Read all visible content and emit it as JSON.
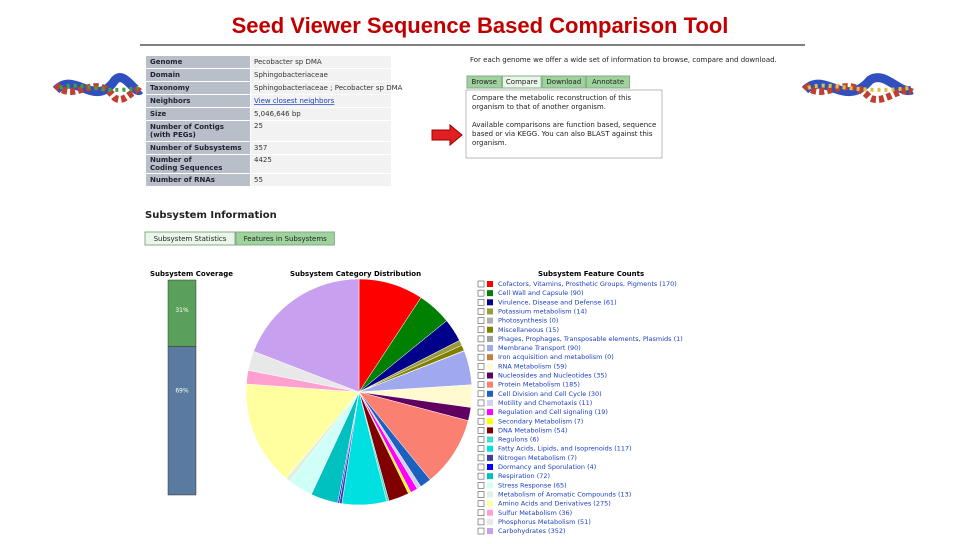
{
  "title": "Seed Viewer Sequence Based Comparison Tool",
  "overview": [
    [
      "Genome",
      "Pecobacter sp DMA"
    ],
    [
      "Domain",
      "Sphingobacteriaceae"
    ],
    [
      "Taxonomy",
      "Sphingobacteriaceae ; Pecobacter sp DMA"
    ],
    [
      "Neighbors",
      "View closest neighbors"
    ],
    [
      "Size",
      "5,046,646 bp"
    ],
    [
      "Number of Contigs (with PEGs)",
      "25"
    ],
    [
      "Number of Subsystems",
      "357"
    ],
    [
      "Number of Coding Sequences",
      "4425"
    ],
    [
      "Number of RNAs",
      "55"
    ]
  ],
  "info": {
    "intro": "For each genome we offer a wide set of information to browse, compare and download.",
    "tabs": [
      "Browse",
      "Compare",
      "Download",
      "Annotate"
    ],
    "text1": "Compare the metabolic reconstruction of this organism to that of another organism.",
    "text2": "Available comparisons are function based, sequence based or via KEGG. You can also BLAST against this organism."
  },
  "subsystem": {
    "heading": "Subsystem Information",
    "tabs": [
      "Subsystem Statistics",
      "Features in Subsystems"
    ],
    "coverage_title": "Subsystem Coverage",
    "distribution_title": "Subsystem Category Distribution",
    "counts_title": "Subsystem Feature Counts",
    "coverage": [
      {
        "value": 31,
        "label": "31%",
        "color": "#5aa05a"
      },
      {
        "value": 69,
        "label": "69%",
        "color": "#5a7aa0"
      }
    ],
    "features": [
      {
        "label": "Cofactors, Vitamins, Prosthetic Groups, Pigments (170)",
        "value": 170,
        "color": "#ff0000"
      },
      {
        "label": "Cell Wall and Capsule (90)",
        "value": 90,
        "color": "#008000"
      },
      {
        "label": "Virulence, Disease and Defense (61)",
        "value": 61,
        "color": "#00008b"
      },
      {
        "label": "Potassium metabolism (14)",
        "value": 14,
        "color": "#9a9a3a"
      },
      {
        "label": "Photosynthesis (0)",
        "value": 0,
        "color": "#b0b0b0"
      },
      {
        "label": "Miscellaneous (15)",
        "value": 15,
        "color": "#808000"
      },
      {
        "label": "Phages, Prophages, Transposable elements, Plasmids (1)",
        "value": 1,
        "color": "#a0a0a0"
      },
      {
        "label": "Membrane Transport (90)",
        "value": 90,
        "color": "#a0a8f0"
      },
      {
        "label": "Iron acquisition and metabolism (0)",
        "value": 0,
        "color": "#c08040"
      },
      {
        "label": "RNA Metabolism (59)",
        "value": 59,
        "color": "#fffad0"
      },
      {
        "label": "Nucleosides and Nucleotides (35)",
        "value": 35,
        "color": "#600060"
      },
      {
        "label": "Protein Metabolism (185)",
        "value": 185,
        "color": "#fa8072"
      },
      {
        "label": "Cell Division and Cell Cycle (30)",
        "value": 30,
        "color": "#1e60c0"
      },
      {
        "label": "Motility and Chemotaxis (11)",
        "value": 11,
        "color": "#d0d0f0"
      },
      {
        "label": "Regulation and Cell signaling (19)",
        "value": 19,
        "color": "#ff00ff"
      },
      {
        "label": "Secondary Metabolism (7)",
        "value": 7,
        "color": "#ffff00"
      },
      {
        "label": "DNA Metabolism (54)",
        "value": 54,
        "color": "#800000"
      },
      {
        "label": "Regulons (6)",
        "value": 6,
        "color": "#40e0d0"
      },
      {
        "label": "Fatty Acids, Lipids, and Isoprenoids (117)",
        "value": 117,
        "color": "#00e0e0"
      },
      {
        "label": "Nitrogen Metabolism (7)",
        "value": 7,
        "color": "#4040a0"
      },
      {
        "label": "Dormancy and Sporulation (4)",
        "value": 4,
        "color": "#0000ff"
      },
      {
        "label": "Respiration (72)",
        "value": 72,
        "color": "#00c0c0"
      },
      {
        "label": "Stress Response (65)",
        "value": 65,
        "color": "#d0fff8"
      },
      {
        "label": "Metabolism of Aromatic Compounds (13)",
        "value": 13,
        "color": "#e0f0e0"
      },
      {
        "label": "Amino Acids and Derivatives (275)",
        "value": 275,
        "color": "#ffffa0"
      },
      {
        "label": "Sulfur Metabolism (36)",
        "value": 36,
        "color": "#ffa0d0"
      },
      {
        "label": "Phosphorus Metabolism (51)",
        "value": 51,
        "color": "#e8e8e8"
      },
      {
        "label": "Carbohydrates (352)",
        "value": 352,
        "color": "#c8a0f0"
      }
    ]
  }
}
